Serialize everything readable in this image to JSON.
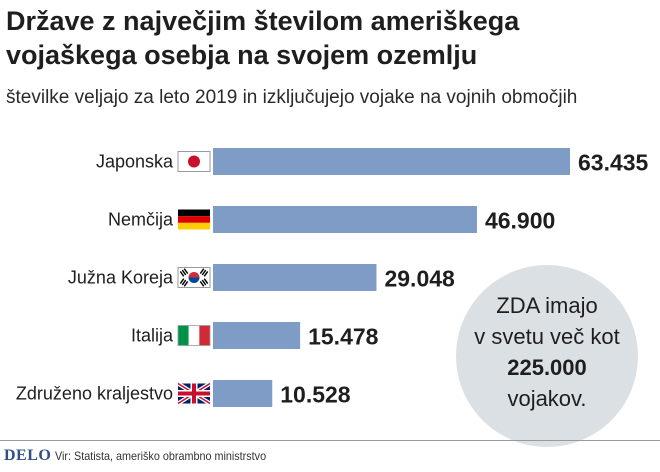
{
  "title": "Države z največjim številom ameriškega vojaškega osebja na svojem ozemlju",
  "subtitle": "številke veljajo za leto 2019 in izključujejo vojake na vojnih območjih",
  "chart_data": {
    "type": "bar",
    "orientation": "horizontal",
    "categories": [
      "Japonska",
      "Nemčija",
      "Južna Koreja",
      "Italija",
      "Združeno kraljestvo"
    ],
    "values": [
      63435,
      46900,
      29048,
      15478,
      10528
    ],
    "value_labels": [
      "63.435",
      "46.900",
      "29.048",
      "15.478",
      "10.528"
    ],
    "flags": [
      "japan-flag-icon",
      "germany-flag-icon",
      "south-korea-flag-icon",
      "italy-flag-icon",
      "united-kingdom-flag-icon"
    ],
    "xlim": [
      0,
      65000
    ],
    "grid": false,
    "legend": "none"
  },
  "callout": {
    "line1": "ZDA imajo",
    "line2": "v svetu več kot",
    "line3": "225.000",
    "line4": "vojakov."
  },
  "footer": {
    "logo": "DELO",
    "source": "Vir: Statista, ameriško obrambno ministrstvo"
  },
  "colors": {
    "bar": "#7f9cc6",
    "callout_bg": "#dbe0e5",
    "logo": "#2f4f86",
    "text": "#1e1e1e"
  }
}
